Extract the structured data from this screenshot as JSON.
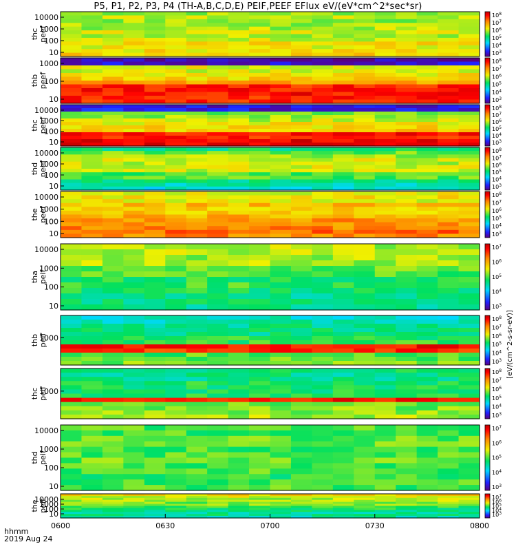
{
  "title": "P5, P1, P2, P3, P4 (TH-A,B,C,D,E) PEIF,PEEF EFlux eV/(eV*cm^2*sec*sr)",
  "time_axis": {
    "ticks": [
      "0600",
      "0630",
      "0700",
      "0730",
      "0800"
    ],
    "label": "hhmm",
    "date": "2019 Aug 24"
  },
  "colorbar_label": "[eV/(cm^2-s-sr-eV)]",
  "colors": {
    "frame": "#000000",
    "background": "#ffffff"
  },
  "chart_data": [
    {
      "type": "heatmap",
      "panel": "thc peef",
      "label_lines": [
        "thc",
        "peef"
      ],
      "y_scale": "log",
      "y_ticks": [
        "10000",
        "1000",
        "100",
        "10"
      ],
      "colorbar_ticks": [
        "10^8",
        "10^7",
        "10^6",
        "10^5",
        "10^4",
        "10^3"
      ]
    },
    {
      "type": "heatmap",
      "panel": "thb peef",
      "label_lines": [
        "thb",
        "peef"
      ],
      "y_scale": "log",
      "y_ticks": [
        "1000",
        "100",
        "10"
      ],
      "colorbar_ticks": [
        "10^8",
        "10^7",
        "10^6",
        "10^5",
        "10^4",
        "10^3"
      ]
    },
    {
      "type": "heatmap",
      "panel": "thc peef",
      "label_lines": [
        "thc",
        "peef"
      ],
      "y_scale": "log",
      "y_ticks": [
        "10000",
        "1000",
        "100",
        "10"
      ],
      "colorbar_ticks": [
        "10^8",
        "10^7",
        "10^6",
        "10^5",
        "10^4",
        "10^3"
      ]
    },
    {
      "type": "heatmap",
      "panel": "thd peef",
      "label_lines": [
        "thd",
        "peef"
      ],
      "y_scale": "log",
      "y_ticks": [
        "10000",
        "1000",
        "100",
        "10"
      ],
      "colorbar_ticks": [
        "10^8",
        "10^7",
        "10^6",
        "10^5",
        "10^4",
        "10^3"
      ]
    },
    {
      "type": "heatmap",
      "panel": "the peef",
      "label_lines": [
        "the",
        "peef"
      ],
      "y_scale": "log",
      "y_ticks": [
        "10000",
        "1000",
        "100",
        "10"
      ],
      "colorbar_ticks": [
        "10^8",
        "10^7",
        "10^6",
        "10^5",
        "10^4",
        "10^3"
      ]
    },
    {
      "type": "heatmap",
      "panel": "tha peif",
      "label_lines": [
        "tha",
        "peif"
      ],
      "y_scale": "log",
      "y_ticks": [
        "10000",
        "1000",
        "100",
        "10"
      ],
      "colorbar_ticks": [
        "10^7",
        "10^6",
        "10^5",
        "10^4",
        "10^3"
      ]
    },
    {
      "type": "heatmap",
      "panel": "thb peif",
      "label_lines": [
        "thb",
        "peif"
      ],
      "y_scale": "log",
      "y_ticks": [
        "1000"
      ],
      "colorbar_ticks": [
        "10^8",
        "10^7",
        "10^6",
        "10^5",
        "10^4",
        "10^3"
      ]
    },
    {
      "type": "heatmap",
      "panel": "thc peif",
      "label_lines": [
        "thc",
        "peif"
      ],
      "y_scale": "log",
      "y_ticks": [
        "1000"
      ],
      "colorbar_ticks": [
        "10^8",
        "10^7",
        "10^6",
        "10^5",
        "10^4",
        "10^3"
      ]
    },
    {
      "type": "heatmap",
      "panel": "thd peif",
      "label_lines": [
        "thd",
        "peif"
      ],
      "y_scale": "log",
      "y_ticks": [
        "10000",
        "1000",
        "100",
        "10"
      ],
      "colorbar_ticks": [
        "10^7",
        "10^6",
        "10^5",
        "10^4",
        "10^3"
      ]
    },
    {
      "type": "heatmap",
      "panel": "the peif",
      "label_lines": [
        "the",
        "peif"
      ],
      "y_scale": "log",
      "y_ticks": [
        "10000",
        "1000",
        "100",
        "10"
      ],
      "colorbar_ticks": [
        "10^7",
        "10^6",
        "10^5",
        "10^4",
        "10^3"
      ]
    }
  ]
}
